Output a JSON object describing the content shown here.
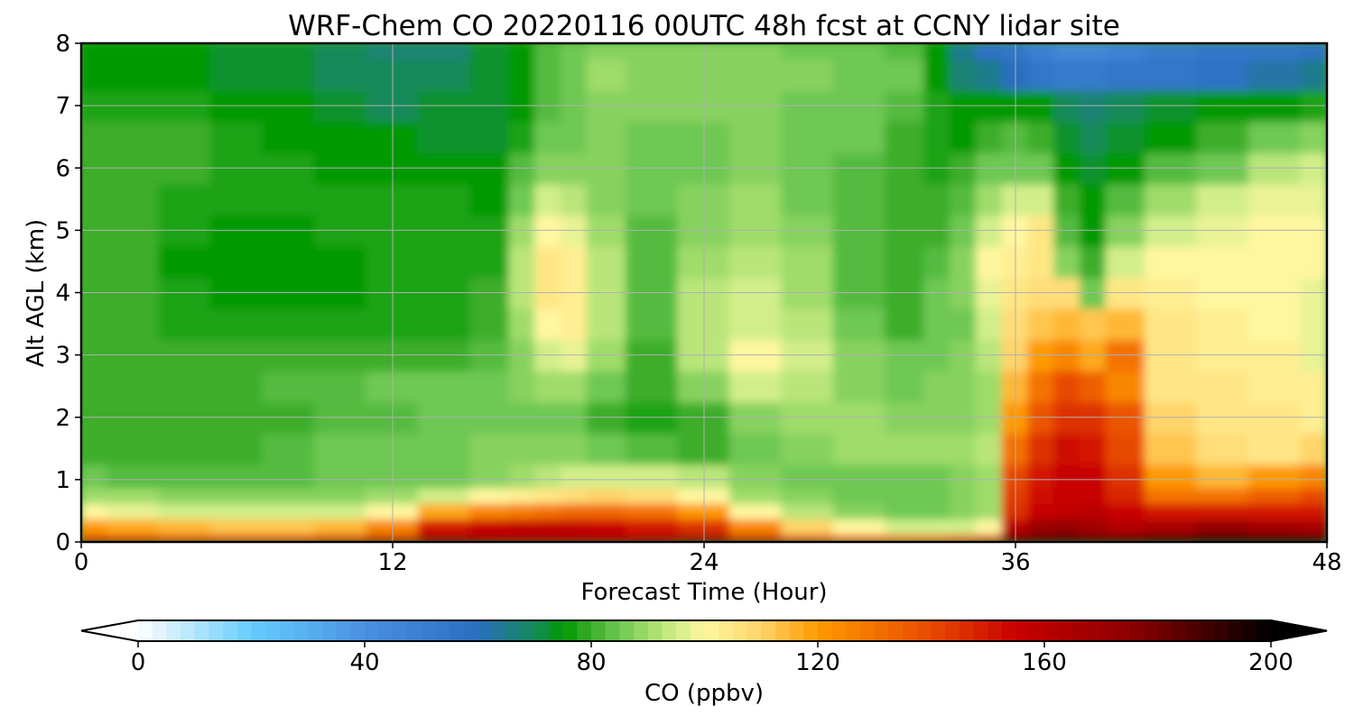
{
  "chart_data": {
    "type": "heatmap",
    "title": "WRF-Chem CO  20220116 00UTC 48h fcst at CCNY lidar site",
    "xlabel": "Forecast Time (Hour)",
    "ylabel": "Alt AGL (km)",
    "xlim": [
      0,
      48
    ],
    "ylim": [
      0,
      8
    ],
    "x_ticks": [
      0,
      12,
      24,
      36,
      48
    ],
    "y_ticks": [
      0,
      1,
      2,
      3,
      4,
      5,
      6,
      7,
      8
    ],
    "grid": true,
    "x": [
      0,
      2,
      4,
      6,
      8,
      10,
      12,
      14,
      16,
      17,
      18,
      19,
      20,
      22,
      24,
      26,
      28,
      30,
      32,
      33,
      34,
      35,
      36,
      37,
      38,
      39,
      40,
      42,
      44,
      46,
      48
    ],
    "y": [
      0,
      0.25,
      0.5,
      0.75,
      1,
      1.5,
      2,
      2.5,
      3,
      3.5,
      4,
      4.5,
      5,
      5.5,
      6,
      6.5,
      7,
      7.5,
      8
    ],
    "z": [
      [
        150,
        148,
        146,
        146,
        146,
        150,
        158,
        175,
        170,
        168,
        168,
        166,
        165,
        168,
        175,
        158,
        145,
        138,
        135,
        136,
        140,
        150,
        182,
        185,
        188,
        186,
        186,
        190,
        196,
        195,
        194
      ],
      [
        120,
        118,
        115,
        113,
        112,
        115,
        125,
        150,
        156,
        158,
        158,
        158,
        156,
        150,
        145,
        125,
        110,
        100,
        95,
        95,
        96,
        100,
        160,
        170,
        172,
        168,
        162,
        166,
        172,
        168,
        165
      ],
      [
        100,
        98,
        96,
        95,
        95,
        96,
        100,
        118,
        124,
        128,
        130,
        132,
        132,
        130,
        120,
        100,
        92,
        88,
        86,
        86,
        87,
        90,
        145,
        155,
        158,
        160,
        156,
        150,
        150,
        150,
        150
      ],
      [
        90,
        89,
        88,
        87,
        87,
        88,
        90,
        95,
        100,
        102,
        105,
        108,
        110,
        108,
        100,
        90,
        87,
        86,
        86,
        86,
        87,
        90,
        142,
        152,
        156,
        156,
        148,
        130,
        130,
        135,
        140
      ],
      [
        84,
        83,
        83,
        83,
        83,
        84,
        85,
        86,
        88,
        90,
        93,
        95,
        96,
        95,
        92,
        88,
        86,
        86,
        86,
        86,
        87,
        90,
        140,
        150,
        156,
        155,
        145,
        120,
        115,
        120,
        126
      ],
      [
        80,
        80,
        80,
        81,
        82,
        84,
        85,
        86,
        87,
        88,
        88,
        87,
        85,
        82,
        80,
        86,
        88,
        89,
        90,
        90,
        90,
        92,
        130,
        145,
        152,
        150,
        140,
        112,
        108,
        106,
        110
      ],
      [
        79,
        79,
        80,
        80,
        81,
        82,
        83,
        84,
        85,
        86,
        86,
        84,
        81,
        78,
        81,
        88,
        90,
        90,
        88,
        87,
        87,
        90,
        120,
        138,
        145,
        146,
        138,
        110,
        106,
        104,
        103
      ],
      [
        81,
        81,
        81,
        81,
        82,
        83,
        84,
        84,
        85,
        87,
        90,
        89,
        84,
        80,
        87,
        94,
        92,
        88,
        86,
        87,
        88,
        91,
        115,
        130,
        140,
        135,
        126,
        106,
        104,
        103,
        102
      ],
      [
        80,
        80,
        79,
        79,
        79,
        80,
        80,
        80,
        82,
        88,
        96,
        98,
        90,
        80,
        92,
        100,
        96,
        88,
        84,
        86,
        88,
        92,
        110,
        120,
        126,
        118,
        130,
        105,
        102,
        102,
        98
      ],
      [
        79,
        79,
        78,
        77,
        77,
        78,
        78,
        78,
        80,
        90,
        100,
        102,
        92,
        82,
        93,
        96,
        92,
        85,
        80,
        84,
        86,
        94,
        108,
        112,
        116,
        112,
        116,
        104,
        102,
        101,
        98
      ],
      [
        79,
        79,
        77,
        76,
        76,
        76,
        77,
        77,
        79,
        92,
        104,
        103,
        92,
        83,
        92,
        94,
        90,
        83,
        80,
        84,
        88,
        98,
        105,
        108,
        108,
        86,
        104,
        102,
        101,
        100,
        98
      ],
      [
        80,
        79,
        76,
        75,
        76,
        76,
        77,
        77,
        78,
        92,
        104,
        102,
        92,
        82,
        90,
        92,
        89,
        82,
        80,
        82,
        88,
        100,
        103,
        106,
        88,
        80,
        96,
        100,
        100,
        100,
        99
      ],
      [
        80,
        79,
        77,
        76,
        76,
        77,
        77,
        77,
        77,
        90,
        100,
        98,
        90,
        82,
        88,
        91,
        88,
        82,
        80,
        80,
        86,
        96,
        100,
        104,
        82,
        76,
        88,
        96,
        98,
        99,
        99
      ],
      [
        80,
        80,
        78,
        78,
        77,
        77,
        78,
        77,
        76,
        86,
        94,
        93,
        88,
        84,
        87,
        89,
        86,
        82,
        80,
        80,
        82,
        90,
        94,
        96,
        80,
        75,
        82,
        90,
        94,
        97,
        98
      ],
      [
        80,
        80,
        79,
        78,
        77,
        76,
        76,
        75,
        74,
        82,
        88,
        88,
        87,
        86,
        86,
        88,
        86,
        82,
        80,
        78,
        79,
        84,
        86,
        84,
        74,
        72,
        76,
        82,
        86,
        92,
        94
      ],
      [
        79,
        80,
        79,
        77,
        76,
        75,
        74,
        73,
        72,
        78,
        84,
        86,
        87,
        86,
        86,
        87,
        86,
        84,
        81,
        78,
        76,
        80,
        82,
        80,
        72,
        70,
        72,
        76,
        80,
        84,
        88
      ],
      [
        77,
        78,
        77,
        75,
        74,
        73,
        71,
        72,
        72,
        76,
        82,
        86,
        88,
        87,
        87,
        87,
        86,
        85,
        83,
        78,
        74,
        76,
        76,
        74,
        70,
        68,
        70,
        72,
        74,
        76,
        78
      ],
      [
        75,
        75,
        75,
        73,
        72,
        71,
        70,
        70,
        72,
        76,
        82,
        86,
        89,
        88,
        88,
        88,
        87,
        86,
        84,
        76,
        68,
        66,
        60,
        56,
        52,
        52,
        54,
        56,
        58,
        62,
        64
      ],
      [
        74,
        74,
        74,
        72,
        72,
        70,
        68,
        68,
        72,
        76,
        82,
        86,
        88,
        88,
        88,
        87,
        86,
        86,
        82,
        74,
        64,
        58,
        54,
        50,
        46,
        46,
        48,
        52,
        54,
        56,
        58
      ]
    ],
    "colorbar": {
      "label": "CO  (ppbv)",
      "min": 0,
      "max": 200,
      "ticks": [
        0,
        40,
        80,
        120,
        160,
        200
      ],
      "extend": "both",
      "colors": {
        "0": "#ffffff",
        "20": "#66ccff",
        "40": "#4a90e0",
        "60": "#2a6ec0",
        "70": "#148a5a",
        "75": "#009900",
        "80": "#3cad2a",
        "85": "#6ec853",
        "90": "#9fdc6a",
        "95": "#d2ee8a",
        "100": "#fff7a0",
        "110": "#ffd46a",
        "120": "#ff9a00",
        "140": "#e84a00",
        "155": "#c80000",
        "175": "#8c0000",
        "190": "#3a0000",
        "200": "#000000"
      }
    }
  }
}
